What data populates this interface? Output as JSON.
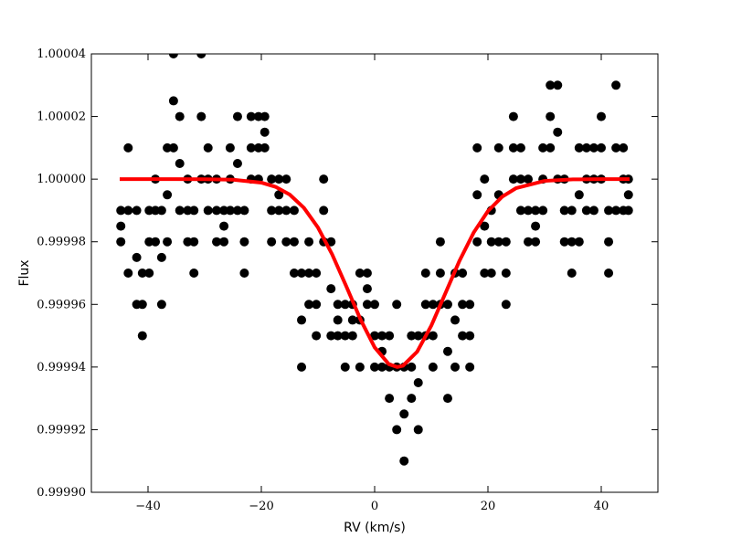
{
  "chart_data": {
    "type": "scatter",
    "x_label": "RV (km/s)",
    "y_label": "Flux",
    "xlim": [
      -50,
      50
    ],
    "ylim": [
      0.9999,
      1.00004
    ],
    "xticks": [
      {
        "value": -40,
        "label": "−40"
      },
      {
        "value": -20,
        "label": "−20"
      },
      0,
      20,
      40
    ],
    "yticks": [
      {
        "value": 0.9999,
        "label": "0.99990"
      },
      {
        "value": 0.99992,
        "label": "0.99992"
      },
      {
        "value": 0.99994,
        "label": "0.99994"
      },
      {
        "value": 0.99996,
        "label": "0.99996"
      },
      {
        "value": 0.99998,
        "label": "0.99998"
      },
      {
        "value": 1.0,
        "label": "1.00000"
      },
      {
        "value": 1.00002,
        "label": "1.00002"
      },
      {
        "value": 1.00004,
        "label": "1.00004"
      }
    ],
    "series": [
      {
        "type": "scatter",
        "color": "#000000",
        "x": [
          -44.8,
          -44.8,
          -44.8,
          -43.5,
          -43.5,
          -43.5,
          -42,
          -42,
          -42,
          -41,
          -41,
          -41,
          -39.8,
          -39.8,
          -39.8,
          -38.7,
          -38.7,
          -38.7,
          -37.6,
          -37.6,
          -37.6,
          -36.6,
          -36.6,
          -36.6,
          -35.5,
          -35.5,
          -35.5,
          -34.4,
          -34.4,
          -34.4,
          -33,
          -33,
          -33,
          -31.9,
          -31.9,
          -31.9,
          -30.6,
          -30.6,
          -30.6,
          -29.4,
          -29.4,
          -29.4,
          -27.9,
          -27.9,
          -27.9,
          -26.6,
          -26.6,
          -26.6,
          -25.5,
          -25.5,
          -25.5,
          -24.2,
          -24.2,
          -24.2,
          -23,
          -23,
          -23,
          -21.8,
          -21.8,
          -21.8,
          -20.5,
          -20.5,
          -20.5,
          -19.4,
          -19.4,
          -19.4,
          -18.2,
          -18.2,
          -18.2,
          -16.9,
          -16.9,
          -16.9,
          -15.6,
          -15.6,
          -15.6,
          -14.2,
          -14.2,
          -14.2,
          -12.9,
          -12.9,
          -12.9,
          -11.6,
          -11.6,
          -11.6,
          -10.3,
          -10.3,
          -10.3,
          -9,
          -9,
          -9,
          -7.7,
          -7.7,
          -7.7,
          -6.5,
          -6.5,
          -6.5,
          -5.2,
          -5.2,
          -5.2,
          -3.9,
          -3.9,
          -3.9,
          -2.6,
          -2.6,
          -2.6,
          -1.3,
          -1.3,
          -1.3,
          0,
          0,
          0,
          1.3,
          1.3,
          1.3,
          2.6,
          2.6,
          2.6,
          3.9,
          3.9,
          3.9,
          5.2,
          5.2,
          5.2,
          6.5,
          6.5,
          6.5,
          7.7,
          7.7,
          7.7,
          9,
          9,
          9,
          10.3,
          10.3,
          10.3,
          11.6,
          11.6,
          11.6,
          12.9,
          12.9,
          12.9,
          14.2,
          14.2,
          14.2,
          15.5,
          15.5,
          15.5,
          16.8,
          16.8,
          16.8,
          18.1,
          18.1,
          18.1,
          19.4,
          19.4,
          19.4,
          20.6,
          20.6,
          20.6,
          21.9,
          21.9,
          21.9,
          23.2,
          23.2,
          23.2,
          24.5,
          24.5,
          24.5,
          25.8,
          25.8,
          25.8,
          27.1,
          27.1,
          27.1,
          28.4,
          28.4,
          28.4,
          29.7,
          29.7,
          29.7,
          31,
          31,
          31,
          32.3,
          32.3,
          32.3,
          33.5,
          33.5,
          33.5,
          34.8,
          34.8,
          34.8,
          36.1,
          36.1,
          36.1,
          37.4,
          37.4,
          37.4,
          38.7,
          38.7,
          38.7,
          40,
          40,
          40,
          41.3,
          41.3,
          41.3,
          42.6,
          42.6,
          42.6,
          43.9,
          43.9,
          43.9,
          44.8,
          44.8,
          44.8
        ],
        "values": [
          0.99998,
          0.999985,
          0.99999,
          0.99997,
          0.99999,
          1.00001,
          0.99996,
          0.999975,
          0.99999,
          0.99995,
          0.99996,
          0.99997,
          0.99997,
          0.99998,
          0.99999,
          0.99998,
          0.99999,
          1.0,
          0.99996,
          0.999975,
          0.99999,
          0.99998,
          0.999995,
          1.00001,
          1.00001,
          1.000025,
          1.00004,
          0.99999,
          1.000005,
          1.00002,
          0.99998,
          0.99999,
          1.0,
          0.99997,
          0.99998,
          0.99999,
          1.0,
          1.00002,
          1.00004,
          0.99999,
          1.0,
          1.00001,
          0.99998,
          0.99999,
          1.0,
          0.99998,
          0.999985,
          0.99999,
          0.99999,
          1.0,
          1.00001,
          0.99999,
          1.000005,
          1.00002,
          0.99997,
          0.99998,
          0.99999,
          1.0,
          1.00001,
          1.00002,
          1.0,
          1.00001,
          1.00002,
          1.00001,
          1.000015,
          1.00002,
          0.99998,
          0.99999,
          1.0,
          0.99999,
          0.999995,
          1.0,
          0.99998,
          0.99999,
          1.0,
          0.99997,
          0.99998,
          0.99999,
          0.99994,
          0.999955,
          0.99997,
          0.99996,
          0.99997,
          0.99998,
          0.99995,
          0.99996,
          0.99997,
          0.99998,
          0.99999,
          1.0,
          0.99995,
          0.999965,
          0.99998,
          0.99995,
          0.999955,
          0.99996,
          0.99994,
          0.99995,
          0.99996,
          0.99995,
          0.999955,
          0.99996,
          0.99994,
          0.999955,
          0.99997,
          0.99996,
          0.999965,
          0.99997,
          0.99994,
          0.99995,
          0.99996,
          0.99994,
          0.999945,
          0.99995,
          0.99993,
          0.99994,
          0.99995,
          0.99992,
          0.99994,
          0.99996,
          0.99991,
          0.999925,
          0.99994,
          0.99993,
          0.99994,
          0.99995,
          0.99992,
          0.999935,
          0.99995,
          0.99995,
          0.99996,
          0.99997,
          0.99994,
          0.99995,
          0.99996,
          0.99996,
          0.99997,
          0.99998,
          0.99993,
          0.999945,
          0.99996,
          0.99994,
          0.999955,
          0.99997,
          0.99995,
          0.99996,
          0.99997,
          0.99994,
          0.99995,
          0.99996,
          0.99998,
          0.999995,
          1.00001,
          0.99997,
          0.999985,
          1.0,
          0.99997,
          0.99998,
          0.99999,
          0.99998,
          0.999995,
          1.00001,
          0.99996,
          0.99997,
          0.99998,
          1.0,
          1.00001,
          1.00002,
          0.99999,
          1.0,
          1.00001,
          0.99998,
          0.99999,
          1.0,
          0.99998,
          0.999985,
          0.99999,
          0.99999,
          1.0,
          1.00001,
          1.00001,
          1.00002,
          1.00003,
          1.0,
          1.000015,
          1.00003,
          0.99998,
          0.99999,
          1.0,
          0.99997,
          0.99998,
          0.99999,
          0.99998,
          0.999995,
          1.00001,
          0.99999,
          1.0,
          1.00001,
          0.99999,
          1.0,
          1.00001,
          1.0,
          1.00001,
          1.00002,
          0.99997,
          0.99998,
          0.99999,
          0.99999,
          1.00001,
          1.00003,
          0.99999,
          1.0,
          1.00001,
          0.99999,
          0.999995,
          1.0
        ]
      },
      {
        "type": "line",
        "color": "#ff0000",
        "x": [
          -45,
          -40,
          -35,
          -30,
          -25,
          -20,
          -17.5,
          -15,
          -12.5,
          -10,
          -7.5,
          -5,
          -2.5,
          0,
          2.5,
          4,
          5,
          7.5,
          10,
          12.5,
          15,
          17.5,
          20,
          22.5,
          25,
          30,
          35,
          40,
          45
        ],
        "values": [
          1.0,
          1.0,
          1.0,
          0.99999998,
          0.99999982,
          0.99999889,
          0.99999755,
          0.99999508,
          0.99999088,
          0.99998454,
          0.99997598,
          0.99996575,
          0.99995521,
          0.99994629,
          0.99994092,
          0.99994,
          0.99994041,
          0.99994488,
          0.99995322,
          0.99996361,
          0.99997402,
          0.999983,
          0.9999898,
          0.99999438,
          0.99999716,
          0.99999944,
          0.99999992,
          1.0,
          1.0
        ]
      }
    ]
  }
}
